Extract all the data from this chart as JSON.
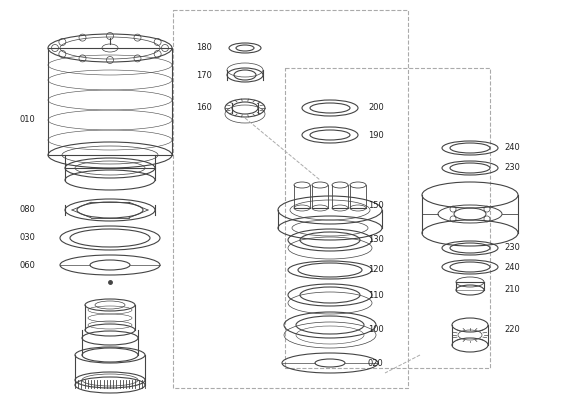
{
  "background_color": "#ffffff",
  "font_size": 6.0,
  "line_color": "#444444",
  "line_width": 0.8,
  "dashed_color": "#aaaaaa"
}
